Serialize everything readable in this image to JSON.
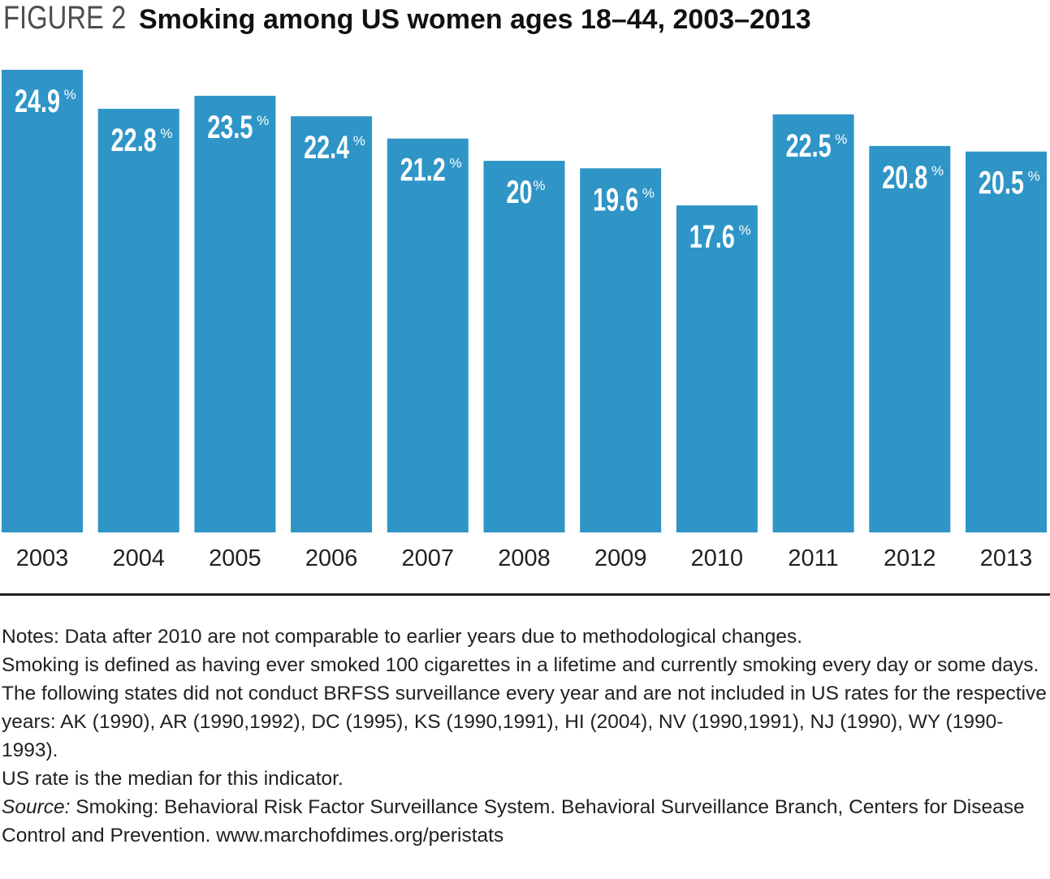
{
  "header": {
    "figure_label": "FIGURE 2",
    "title": "Smoking among US women ages 18–44, 2003–2013"
  },
  "chart_data": {
    "type": "bar",
    "categories": [
      "2003",
      "2004",
      "2005",
      "2006",
      "2007",
      "2008",
      "2009",
      "2010",
      "2011",
      "2012",
      "2013"
    ],
    "values": [
      24.9,
      22.8,
      23.5,
      22.4,
      21.2,
      20,
      19.6,
      17.6,
      22.5,
      20.8,
      20.5
    ],
    "value_labels": [
      "24.9",
      "22.8",
      "23.5",
      "22.4",
      "21.2",
      "20",
      "19.6",
      "17.6",
      "22.5",
      "20.8",
      "20.5"
    ],
    "value_suffix": "%",
    "title": "Smoking among US women ages 18–44, 2003–2013",
    "xlabel": "",
    "ylabel": "",
    "ylim": [
      0,
      24.9
    ],
    "grid": false,
    "bar_color": "#2e95c6",
    "label_color": "#ffffff"
  },
  "notes": {
    "line1": "Notes: Data after 2010 are not comparable to earlier years due to methodological changes.",
    "line2": "Smoking is defined as having ever smoked 100 cigarettes in a lifetime and currently smoking every day or some days.",
    "line3": "The following states did not conduct BRFSS surveillance every year and are not included in US rates for the respective years: AK (1990), AR (1990,1992), DC (1995), KS (1990,1991), HI (2004), NV (1990,1991), NJ (1990), WY (1990-1993).",
    "line4": "US rate is the median for this indicator.",
    "source_label": "Source:",
    "source_text": " Smoking: Behavioral Risk Factor Surveillance System. Behavioral Surveillance Branch, Centers for Disease Control and Prevention. www.marchofdimes.org/peristats"
  }
}
